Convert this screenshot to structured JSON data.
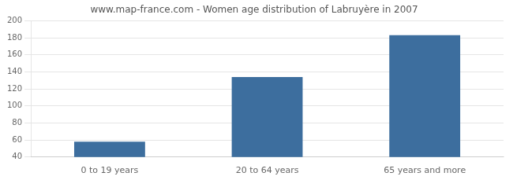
{
  "chart_data": {
    "type": "bar",
    "title": "www.map-france.com - Women age distribution of Labruyère in 2007",
    "categories": [
      "0 to 19 years",
      "20 to 64 years",
      "65 years and more"
    ],
    "values": [
      58,
      134,
      183
    ],
    "color": "#3d6e9e",
    "ylim": [
      40,
      200
    ],
    "yticks": [
      40,
      60,
      80,
      100,
      120,
      140,
      160,
      180,
      200
    ],
    "grid": true
  }
}
